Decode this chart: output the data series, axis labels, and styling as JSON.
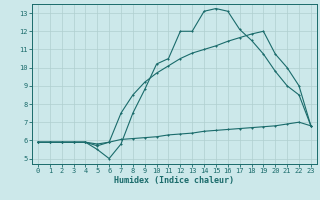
{
  "xlabel": "Humidex (Indice chaleur)",
  "bg_color": "#cce8ea",
  "line_color": "#1a6b6b",
  "grid_color": "#b0cfcf",
  "xlim_min": -0.5,
  "xlim_max": 23.5,
  "ylim_min": 4.7,
  "ylim_max": 13.5,
  "xticks": [
    0,
    1,
    2,
    3,
    4,
    5,
    6,
    7,
    8,
    9,
    10,
    11,
    12,
    13,
    14,
    15,
    16,
    17,
    18,
    19,
    20,
    21,
    22,
    23
  ],
  "yticks": [
    5,
    6,
    7,
    8,
    9,
    10,
    11,
    12,
    13
  ],
  "line1_x": [
    0,
    1,
    2,
    3,
    4,
    5,
    6,
    7,
    8,
    9,
    10,
    11,
    12,
    13,
    14,
    15,
    16,
    17,
    18,
    19,
    20,
    21,
    22,
    23
  ],
  "line1_y": [
    5.9,
    5.9,
    5.9,
    5.9,
    5.9,
    5.5,
    5.0,
    5.8,
    7.5,
    8.8,
    10.2,
    10.5,
    12.0,
    12.0,
    13.1,
    13.25,
    13.1,
    12.1,
    11.5,
    10.75,
    9.8,
    9.0,
    8.5,
    6.8
  ],
  "line2_x": [
    0,
    1,
    2,
    3,
    4,
    5,
    6,
    7,
    8,
    9,
    10,
    11,
    12,
    13,
    14,
    15,
    16,
    17,
    18,
    19,
    20,
    21,
    22,
    23
  ],
  "line2_y": [
    5.9,
    5.9,
    5.9,
    5.9,
    5.9,
    5.8,
    5.9,
    7.5,
    8.5,
    9.2,
    9.7,
    10.1,
    10.5,
    10.8,
    11.0,
    11.2,
    11.45,
    11.65,
    11.85,
    12.0,
    10.75,
    10.0,
    9.0,
    6.8
  ],
  "line3_x": [
    0,
    1,
    2,
    3,
    4,
    5,
    6,
    7,
    8,
    9,
    10,
    11,
    12,
    13,
    14,
    15,
    16,
    17,
    18,
    19,
    20,
    21,
    22,
    23
  ],
  "line3_y": [
    5.9,
    5.9,
    5.9,
    5.9,
    5.9,
    5.7,
    5.9,
    6.05,
    6.1,
    6.15,
    6.2,
    6.3,
    6.35,
    6.4,
    6.5,
    6.55,
    6.6,
    6.65,
    6.7,
    6.75,
    6.8,
    6.9,
    7.0,
    6.8
  ]
}
